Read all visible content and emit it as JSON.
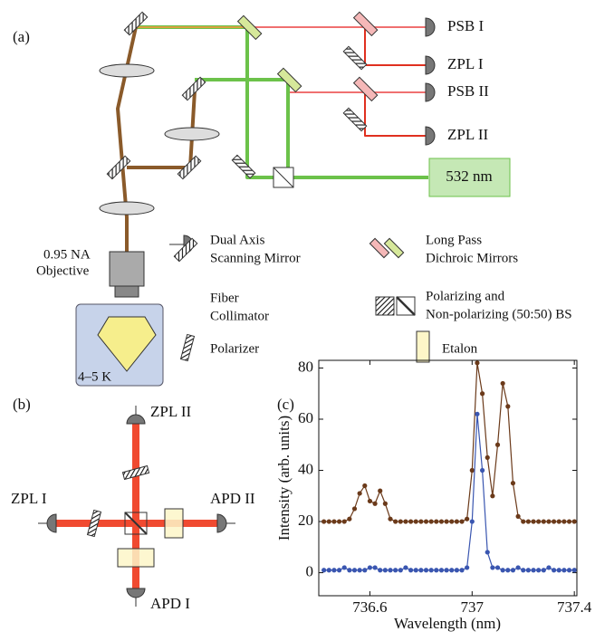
{
  "panel_a": {
    "label": "(a)",
    "outputs": [
      "PSB I",
      "ZPL I",
      "PSB II",
      "ZPL II"
    ],
    "laser": "532 nm",
    "objective": [
      "0.95 NA",
      "Objective"
    ],
    "temperature": "4–5 K",
    "legend": {
      "scanning_mirror": [
        "Dual Axis",
        "Scanning Mirror"
      ],
      "dichroic": [
        "Long Pass",
        "Dichroic Mirrors"
      ],
      "collimator": [
        "Fiber",
        "Collimator"
      ],
      "beamsplitter": [
        "Polarizing and",
        "Non-polarizing (50:50) BS"
      ],
      "polarizer": "Polarizer",
      "etalon": "Etalon"
    }
  },
  "panel_b": {
    "label": "(b)",
    "top": "ZPL II",
    "left": "ZPL I",
    "right": "APD II",
    "bottom": "APD I"
  },
  "chart_data": {
    "type": "scatter-line",
    "label": "(c)",
    "xlabel": "Wavelength (nm)",
    "ylabel": "Intensity (arb. units)",
    "x": [
      736.42,
      736.44,
      736.46,
      736.48,
      736.5,
      736.52,
      736.54,
      736.56,
      736.58,
      736.6,
      736.62,
      736.64,
      736.66,
      736.68,
      736.7,
      736.72,
      736.74,
      736.76,
      736.78,
      736.8,
      736.82,
      736.84,
      736.86,
      736.88,
      736.9,
      736.92,
      736.94,
      736.96,
      736.98,
      737,
      737.02,
      737.04,
      737.06,
      737.08,
      737.1,
      737.12,
      737.14,
      737.16,
      737.18,
      737.2,
      737.22,
      737.24,
      737.26,
      737.28,
      737.3,
      737.32,
      737.34,
      737.36,
      737.38,
      737.4
    ],
    "series": [
      {
        "color": "#6b3a1a",
        "values": [
          20,
          20,
          20,
          20,
          20,
          21,
          25,
          31,
          34,
          28,
          27,
          32,
          27,
          21,
          20,
          20,
          20,
          20,
          20,
          20,
          20,
          20,
          20,
          20,
          20,
          20,
          20,
          20,
          21,
          40,
          82,
          70,
          45,
          30,
          50,
          74,
          65,
          35,
          22,
          20,
          20,
          20,
          20,
          20,
          20,
          20,
          20,
          20,
          20,
          20
        ]
      },
      {
        "color": "#3a56b0",
        "values": [
          1,
          1,
          1,
          1,
          2,
          1,
          1,
          1,
          1,
          2,
          2,
          1,
          1,
          1,
          1,
          1,
          2,
          1,
          1,
          1,
          1,
          1,
          1,
          1,
          1,
          1,
          1,
          1,
          2,
          20,
          62,
          40,
          8,
          2,
          2,
          1,
          1,
          1,
          2,
          1,
          1,
          1,
          1,
          1,
          2,
          1,
          1,
          1,
          1,
          1
        ]
      }
    ],
    "xlim": [
      736.4,
      737.41
    ],
    "ylim": [
      -9,
      83
    ],
    "xticks": [
      736.6,
      737,
      737.4
    ],
    "yticks": [
      0,
      20,
      40,
      60,
      80
    ]
  }
}
